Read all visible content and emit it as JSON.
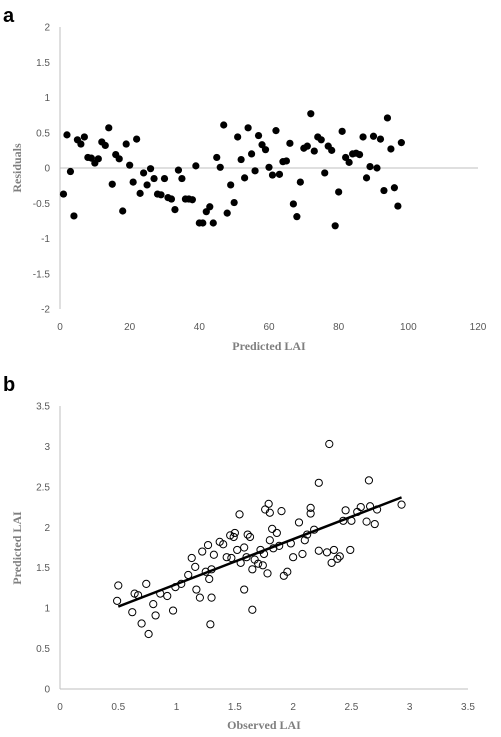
{
  "panels": {
    "a": {
      "label": "a"
    },
    "b": {
      "label": "b"
    }
  },
  "chart_data": [
    {
      "type": "scatter",
      "panel": "a",
      "xlabel": "Predicted LAI",
      "ylabel": "Residuals",
      "xlim": [
        0,
        120
      ],
      "ylim": [
        -2,
        2
      ],
      "xticks": [
        0,
        20,
        40,
        60,
        80,
        100,
        120
      ],
      "yticks": [
        -2,
        -1.5,
        -1,
        -0.5,
        0,
        0.5,
        1,
        1.5,
        2
      ],
      "grid": false,
      "marker": "filled-circle",
      "color": "#000000",
      "points": [
        [
          1,
          -0.37
        ],
        [
          2,
          0.47
        ],
        [
          3,
          -0.05
        ],
        [
          4,
          -0.68
        ],
        [
          5,
          0.4
        ],
        [
          6,
          0.34
        ],
        [
          7,
          0.44
        ],
        [
          8,
          0.15
        ],
        [
          9,
          0.14
        ],
        [
          10,
          0.07
        ],
        [
          11,
          0.13
        ],
        [
          12,
          0.37
        ],
        [
          13,
          0.32
        ],
        [
          14,
          0.57
        ],
        [
          15,
          -0.23
        ],
        [
          16,
          0.19
        ],
        [
          17,
          0.13
        ],
        [
          18,
          -0.61
        ],
        [
          19,
          0.34
        ],
        [
          20,
          0.04
        ],
        [
          21,
          -0.2
        ],
        [
          22,
          0.41
        ],
        [
          23,
          -0.36
        ],
        [
          24,
          -0.07
        ],
        [
          25,
          -0.24
        ],
        [
          26,
          -0.01
        ],
        [
          27,
          -0.15
        ],
        [
          28,
          -0.37
        ],
        [
          29,
          -0.38
        ],
        [
          30,
          -0.15
        ],
        [
          31,
          -0.42
        ],
        [
          32,
          -0.44
        ],
        [
          33,
          -0.59
        ],
        [
          34,
          -0.03
        ],
        [
          35,
          -0.15
        ],
        [
          36,
          -0.44
        ],
        [
          37,
          -0.44
        ],
        [
          38,
          -0.45
        ],
        [
          39,
          0.03
        ],
        [
          40,
          -0.78
        ],
        [
          41,
          -0.78
        ],
        [
          42,
          -0.62
        ],
        [
          43,
          -0.55
        ],
        [
          44,
          -0.78
        ],
        [
          45,
          0.15
        ],
        [
          46,
          0.01
        ],
        [
          47,
          0.61
        ],
        [
          48,
          -0.64
        ],
        [
          49,
          -0.24
        ],
        [
          50,
          -0.49
        ],
        [
          51,
          0.44
        ],
        [
          52,
          0.12
        ],
        [
          53,
          -0.14
        ],
        [
          54,
          0.57
        ],
        [
          55,
          0.2
        ],
        [
          56,
          -0.04
        ],
        [
          57,
          0.46
        ],
        [
          58,
          0.33
        ],
        [
          59,
          0.26
        ],
        [
          60,
          0.01
        ],
        [
          61,
          -0.1
        ],
        [
          62,
          0.53
        ],
        [
          63,
          -0.09
        ],
        [
          64,
          0.09
        ],
        [
          65,
          0.1
        ],
        [
          66,
          0.35
        ],
        [
          67,
          -0.51
        ],
        [
          68,
          -0.69
        ],
        [
          69,
          -0.2
        ],
        [
          70,
          0.28
        ],
        [
          71,
          0.31
        ],
        [
          72,
          0.77
        ],
        [
          73,
          0.24
        ],
        [
          74,
          0.44
        ],
        [
          75,
          0.4
        ],
        [
          76,
          -0.07
        ],
        [
          77,
          0.31
        ],
        [
          78,
          0.25
        ],
        [
          79,
          -0.82
        ],
        [
          80,
          -0.34
        ],
        [
          81,
          0.52
        ],
        [
          82,
          0.15
        ],
        [
          83,
          0.08
        ],
        [
          84,
          0.2
        ],
        [
          85,
          0.21
        ],
        [
          86,
          0.19
        ],
        [
          87,
          0.44
        ],
        [
          88,
          -0.14
        ],
        [
          89,
          0.02
        ],
        [
          90,
          0.45
        ],
        [
          91,
          0.0
        ],
        [
          92,
          0.41
        ],
        [
          93,
          -0.32
        ],
        [
          94,
          0.71
        ],
        [
          95,
          0.27
        ],
        [
          96,
          -0.28
        ],
        [
          97,
          -0.54
        ],
        [
          98,
          0.36
        ]
      ]
    },
    {
      "type": "scatter",
      "panel": "b",
      "xlabel": "Observed LAI",
      "ylabel": "Predicted LAI",
      "xlim": [
        0,
        3.5
      ],
      "ylim": [
        0,
        3.5
      ],
      "xticks": [
        0,
        0.5,
        1,
        1.5,
        2,
        2.5,
        3,
        3.5
      ],
      "yticks": [
        0,
        0.5,
        1,
        1.5,
        2,
        2.5,
        3,
        3.5
      ],
      "grid": false,
      "marker": "open-circle",
      "color": "#000000",
      "trendline": {
        "x": [
          0.5,
          2.93
        ],
        "y": [
          1.02,
          2.37
        ]
      },
      "points": [
        [
          0.5,
          1.28
        ],
        [
          0.49,
          1.09
        ],
        [
          0.62,
          0.95
        ],
        [
          0.64,
          1.18
        ],
        [
          0.67,
          1.16
        ],
        [
          0.7,
          0.81
        ],
        [
          0.74,
          1.3
        ],
        [
          0.76,
          0.68
        ],
        [
          0.8,
          1.05
        ],
        [
          0.82,
          0.91
        ],
        [
          0.86,
          1.18
        ],
        [
          0.92,
          1.15
        ],
        [
          0.97,
          0.97
        ],
        [
          0.99,
          1.26
        ],
        [
          1.04,
          1.3
        ],
        [
          1.1,
          1.41
        ],
        [
          1.13,
          1.62
        ],
        [
          1.16,
          1.51
        ],
        [
          1.17,
          1.23
        ],
        [
          1.2,
          1.13
        ],
        [
          1.22,
          1.7
        ],
        [
          1.25,
          1.45
        ],
        [
          1.27,
          1.78
        ],
        [
          1.28,
          1.36
        ],
        [
          1.29,
          0.8
        ],
        [
          1.3,
          1.13
        ],
        [
          1.3,
          1.48
        ],
        [
          1.32,
          1.66
        ],
        [
          1.37,
          1.82
        ],
        [
          1.4,
          1.79
        ],
        [
          1.43,
          1.63
        ],
        [
          1.46,
          1.9
        ],
        [
          1.47,
          1.62
        ],
        [
          1.49,
          1.88
        ],
        [
          1.5,
          1.93
        ],
        [
          1.52,
          1.72
        ],
        [
          1.54,
          2.16
        ],
        [
          1.55,
          1.56
        ],
        [
          1.58,
          1.23
        ],
        [
          1.58,
          1.75
        ],
        [
          1.6,
          1.63
        ],
        [
          1.61,
          1.91
        ],
        [
          1.63,
          1.88
        ],
        [
          1.65,
          0.98
        ],
        [
          1.65,
          1.48
        ],
        [
          1.67,
          1.6
        ],
        [
          1.7,
          1.55
        ],
        [
          1.72,
          1.72
        ],
        [
          1.74,
          1.53
        ],
        [
          1.75,
          1.67
        ],
        [
          1.76,
          2.22
        ],
        [
          1.78,
          1.43
        ],
        [
          1.79,
          2.29
        ],
        [
          1.8,
          2.18
        ],
        [
          1.8,
          1.84
        ],
        [
          1.82,
          1.98
        ],
        [
          1.83,
          1.74
        ],
        [
          1.86,
          1.93
        ],
        [
          1.88,
          1.77
        ],
        [
          1.9,
          2.2
        ],
        [
          1.92,
          1.4
        ],
        [
          1.95,
          1.45
        ],
        [
          1.98,
          1.8
        ],
        [
          2.0,
          1.63
        ],
        [
          2.05,
          2.06
        ],
        [
          2.08,
          1.67
        ],
        [
          2.1,
          1.84
        ],
        [
          2.12,
          1.91
        ],
        [
          2.15,
          2.24
        ],
        [
          2.15,
          2.17
        ],
        [
          2.18,
          1.97
        ],
        [
          2.22,
          1.71
        ],
        [
          2.22,
          2.55
        ],
        [
          2.29,
          1.69
        ],
        [
          2.31,
          3.03
        ],
        [
          2.33,
          1.56
        ],
        [
          2.35,
          1.72
        ],
        [
          2.38,
          1.61
        ],
        [
          2.4,
          1.64
        ],
        [
          2.43,
          2.08
        ],
        [
          2.45,
          2.21
        ],
        [
          2.49,
          1.72
        ],
        [
          2.5,
          2.08
        ],
        [
          2.55,
          2.19
        ],
        [
          2.58,
          2.25
        ],
        [
          2.63,
          2.07
        ],
        [
          2.65,
          2.58
        ],
        [
          2.66,
          2.26
        ],
        [
          2.7,
          2.04
        ],
        [
          2.72,
          2.22
        ],
        [
          2.93,
          2.28
        ]
      ]
    }
  ]
}
